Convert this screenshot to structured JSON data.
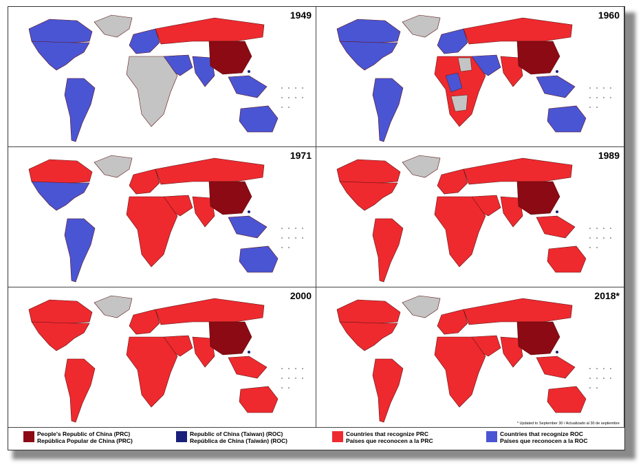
{
  "colors": {
    "prc": "#8b0a14",
    "roc": "#1a1f7a",
    "recognize_prc": "#ee2a2f",
    "recognize_roc": "#4a55d4",
    "none": "#c4c4c4",
    "border": "#5a1010"
  },
  "panels": [
    {
      "year": "1949",
      "state": {
        "na": "roc",
        "greenland": "none",
        "sa": "roc",
        "africa": "none",
        "europe_w": "roc",
        "russia": "prc_rec",
        "me": "roc",
        "india": "roc",
        "sea": "roc",
        "australia": "roc",
        "canada": "roc",
        "china": "prc"
      }
    },
    {
      "year": "1960",
      "state": {
        "na": "roc",
        "greenland": "none",
        "sa": "roc",
        "africa": "mixed",
        "europe_w": "roc",
        "russia": "prc_rec",
        "me": "roc",
        "india": "prc_rec",
        "sea": "roc",
        "australia": "roc",
        "canada": "roc",
        "china": "prc"
      }
    },
    {
      "year": "1971",
      "state": {
        "na": "roc",
        "greenland": "none",
        "sa": "roc",
        "africa": "prc_rec",
        "europe_w": "prc_rec",
        "russia": "prc_rec",
        "me": "prc_rec",
        "india": "prc_rec",
        "sea": "roc",
        "australia": "roc",
        "canada": "prc_rec",
        "china": "prc"
      }
    },
    {
      "year": "1989",
      "state": {
        "na": "prc_rec",
        "greenland": "none",
        "sa": "prc_rec",
        "africa": "prc_rec",
        "europe_w": "prc_rec",
        "russia": "prc_rec",
        "me": "prc_rec",
        "india": "prc_rec",
        "sea": "prc_rec",
        "australia": "prc_rec",
        "canada": "prc_rec",
        "china": "prc"
      }
    },
    {
      "year": "2000",
      "state": {
        "na": "prc_rec",
        "greenland": "none",
        "sa": "prc_rec",
        "africa": "prc_rec",
        "europe_w": "prc_rec",
        "russia": "prc_rec",
        "me": "prc_rec",
        "india": "prc_rec",
        "sea": "prc_rec",
        "australia": "prc_rec",
        "canada": "prc_rec",
        "china": "prc"
      }
    },
    {
      "year": "2018*",
      "state": {
        "na": "prc_rec",
        "greenland": "none",
        "sa": "prc_rec",
        "africa": "prc_rec",
        "europe_w": "prc_rec",
        "russia": "prc_rec",
        "me": "prc_rec",
        "india": "prc_rec",
        "sea": "prc_rec",
        "australia": "prc_rec",
        "canada": "prc_rec",
        "china": "prc"
      }
    }
  ],
  "footnote": "* Updated to September 30 / Actualizado al 30 de septiembre",
  "legend": [
    {
      "key": "prc",
      "line1": "People's Republic of China (PRC)",
      "line2": "República Popular de China (PRC)"
    },
    {
      "key": "roc",
      "line1": "Republic of China (Taiwan) (ROC)",
      "line2": "República de China (Taiwán) (ROC)"
    },
    {
      "key": "recognize_prc",
      "line1": "Countries that recognize PRC",
      "line2": "Países que reconocen a la PRC"
    },
    {
      "key": "recognize_roc",
      "line1": "Countries that recognize ROC",
      "line2": "Países que reconocen a la ROC"
    }
  ]
}
